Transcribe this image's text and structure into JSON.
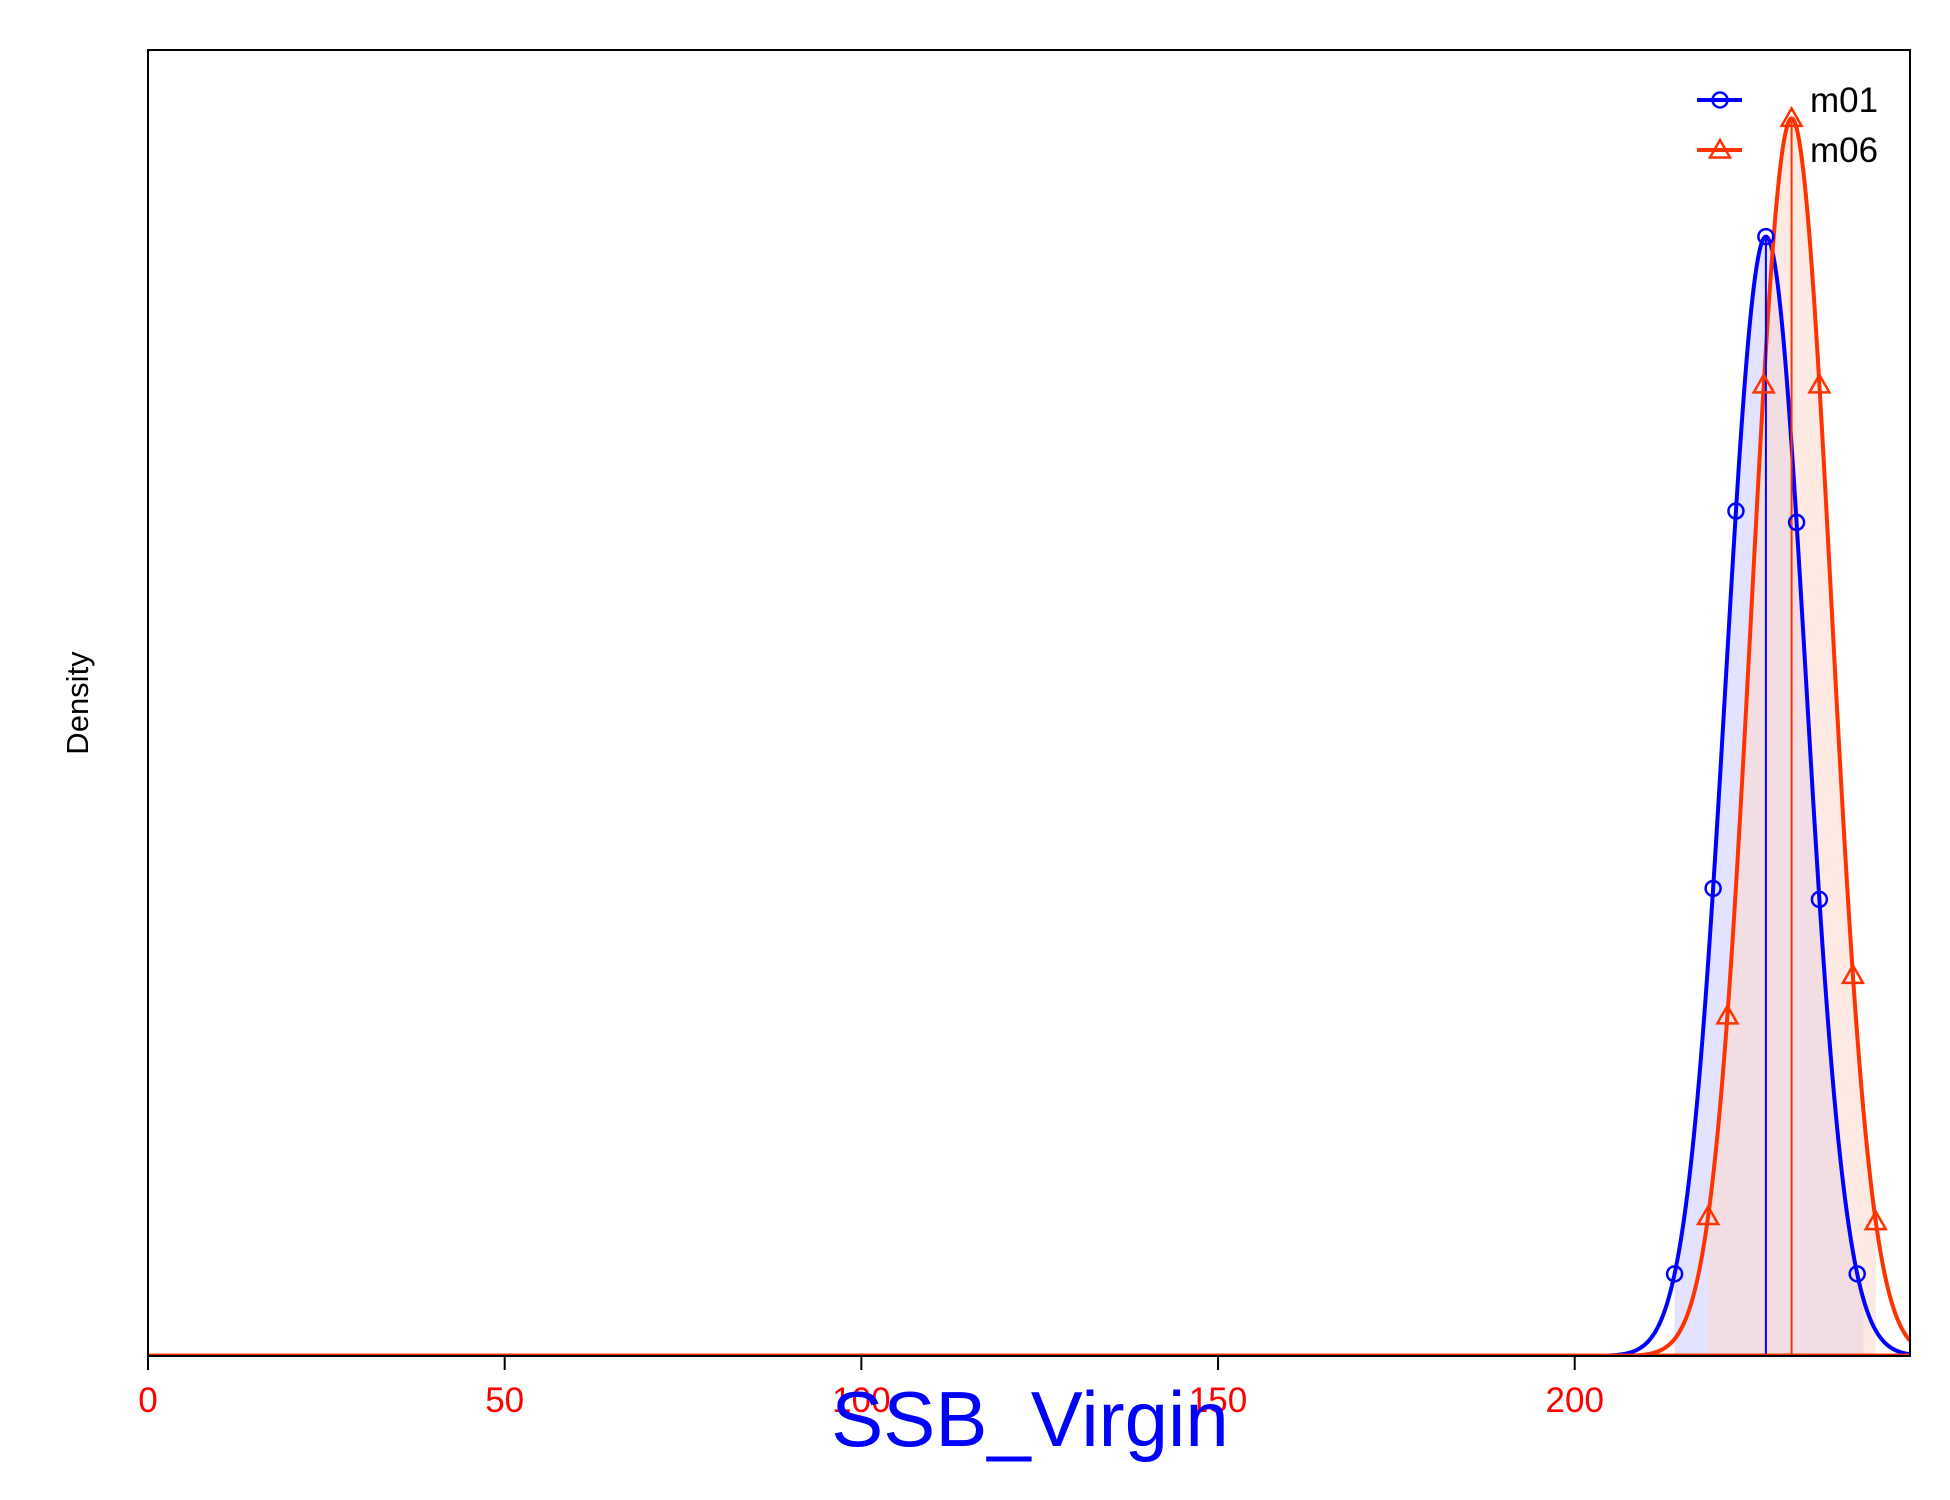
{
  "chart_data": {
    "type": "line",
    "title": "",
    "xlabel": "SSB_Virgin",
    "ylabel": "Density",
    "xlim": [
      0,
      247
    ],
    "ylim": [
      0,
      1.05
    ],
    "x_ticks": [
      0,
      50,
      100,
      150,
      200
    ],
    "x_tick_labels": [
      "0",
      "50",
      "100",
      "150",
      "200"
    ],
    "y_ticks_shown": false,
    "grid": false,
    "legend": {
      "position": "top-right",
      "entries": [
        "m01",
        "m06"
      ]
    },
    "series": [
      {
        "name": "m01",
        "color": "#0000ff",
        "fill": "#ccccff",
        "marker": "circle",
        "distribution": "normal",
        "mean": 226.8,
        "sd": 5.6,
        "peak_density": 0.9,
        "interval_lower": 214.0,
        "interval_upper": 240.5,
        "marker_x": [
          214.0,
          219.4,
          222.6,
          226.8,
          231.1,
          234.3,
          239.6
        ]
      },
      {
        "name": "m06",
        "color": "#ff3300",
        "fill": "#ffd9cc",
        "marker": "triangle",
        "distribution": "normal",
        "mean": 230.4,
        "sd": 5.6,
        "peak_density": 0.995,
        "interval_lower": 218.7,
        "interval_upper": 242.2,
        "marker_x": [
          218.7,
          221.4,
          226.5,
          230.4,
          234.3,
          239.0,
          242.2
        ]
      }
    ]
  }
}
